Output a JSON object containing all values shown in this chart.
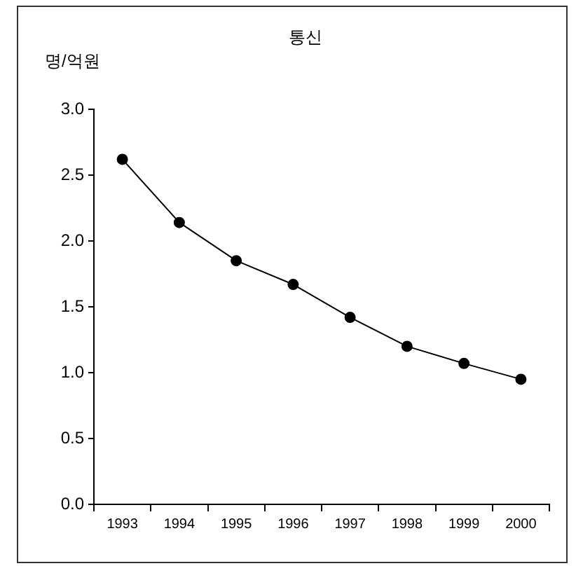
{
  "chart_data": {
    "type": "line",
    "title": "통신",
    "ylabel": "명/억원",
    "categories": [
      "1993",
      "1994",
      "1995",
      "1996",
      "1997",
      "1998",
      "1999",
      "2000"
    ],
    "series": [
      {
        "color": "#000000",
        "values": [
          2.62,
          2.14,
          1.85,
          1.67,
          1.42,
          1.2,
          1.07,
          0.95
        ]
      }
    ],
    "ylim": [
      0,
      3
    ],
    "yticks": [
      {
        "value": 0,
        "label": "0.0"
      },
      {
        "value": 0.5,
        "label": "0.5"
      },
      {
        "value": 1,
        "label": "1.0"
      },
      {
        "value": 1.5,
        "label": "1.5"
      },
      {
        "value": 2,
        "label": "2.0"
      },
      {
        "value": 2.5,
        "label": "2.5"
      },
      {
        "value": 3,
        "label": "3.0"
      }
    ],
    "grid": false,
    "legend": false,
    "marker": "circle",
    "line_style": "solid"
  }
}
